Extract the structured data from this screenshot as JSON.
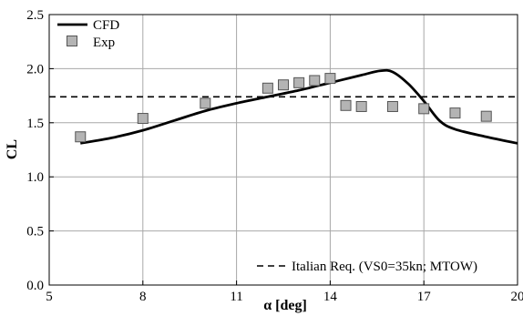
{
  "chart_data": {
    "type": "line",
    "xlabel": "α [deg]",
    "ylabel": "CL",
    "xlim": [
      5,
      20
    ],
    "ylim": [
      0.0,
      2.5
    ],
    "x_ticks": [
      5,
      8,
      11,
      14,
      17,
      20
    ],
    "y_ticks": [
      0.0,
      0.5,
      1.0,
      1.5,
      2.0,
      2.5
    ],
    "x_tick_labels": [
      "5",
      "8",
      "11",
      "14",
      "17",
      "20"
    ],
    "y_tick_labels": [
      "0.0",
      "0.5",
      "1.0",
      "1.5",
      "2.0",
      "2.5"
    ],
    "grid": true,
    "legend_top": {
      "placement": "top-left"
    },
    "legend_bottom": {
      "placement": "bottom-right"
    },
    "series": [
      {
        "name": "CFD",
        "kind": "line",
        "style": "solid",
        "color": "#000000",
        "x": [
          6,
          7,
          8,
          9,
          10,
          11,
          12,
          13,
          14,
          15,
          15.6,
          16,
          16.5,
          17,
          17.5,
          18,
          19,
          20
        ],
        "y": [
          1.31,
          1.36,
          1.43,
          1.52,
          1.61,
          1.68,
          1.74,
          1.8,
          1.87,
          1.94,
          1.98,
          1.97,
          1.86,
          1.7,
          1.52,
          1.44,
          1.37,
          1.31
        ]
      },
      {
        "name": "Exp",
        "kind": "scatter",
        "marker": "square",
        "color": "#b4b4b4",
        "x": [
          6,
          8,
          10,
          12,
          12.5,
          13,
          13.5,
          14,
          14.5,
          15,
          16,
          17,
          18,
          19
        ],
        "y": [
          1.37,
          1.54,
          1.68,
          1.82,
          1.85,
          1.87,
          1.89,
          1.91,
          1.66,
          1.65,
          1.65,
          1.63,
          1.59,
          1.56
        ]
      },
      {
        "name": "Italian Req. (VS0=35kn; MTOW)",
        "kind": "hline",
        "style": "dashed",
        "color": "#000000",
        "y": 1.74
      }
    ]
  }
}
